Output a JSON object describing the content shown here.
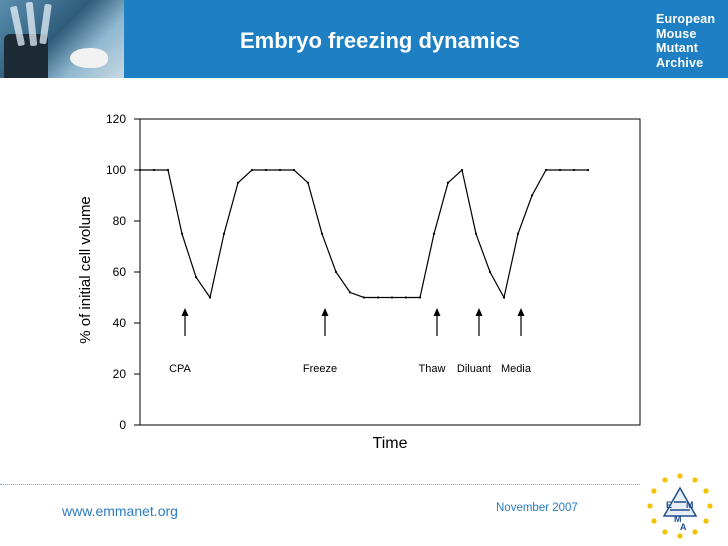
{
  "slide": {
    "title": "Embryo freezing dynamics",
    "logo_lines": [
      "European",
      "Mouse",
      "Mutant",
      "Archive"
    ],
    "url": "www.emmanet.org",
    "date": "November 2007",
    "banner_color": "#1f7fc3",
    "accent_color": "#2b7bc0"
  },
  "chart_data": {
    "type": "line",
    "title": "",
    "xlabel": "Time",
    "ylabel": "% of initial cell volume",
    "ylim": [
      0,
      120
    ],
    "yticks": [
      0,
      20,
      40,
      60,
      80,
      100,
      120
    ],
    "grid": false,
    "series": [
      {
        "values": [
          100,
          100,
          100,
          75,
          58,
          50,
          75,
          95,
          100,
          100,
          100,
          100,
          95,
          75,
          60,
          52,
          50,
          50,
          50,
          50,
          50,
          75,
          95,
          100,
          75,
          60,
          50,
          75,
          90,
          100,
          100,
          100,
          100
        ]
      }
    ],
    "annotations": [
      {
        "label": "CPA",
        "at_point": 3
      },
      {
        "label": "Freeze",
        "at_point": 13
      },
      {
        "label": "Thaw",
        "at_point": 21
      },
      {
        "label": "Diluant",
        "at_point": 24
      },
      {
        "label": "Media",
        "at_point": 27
      }
    ]
  }
}
